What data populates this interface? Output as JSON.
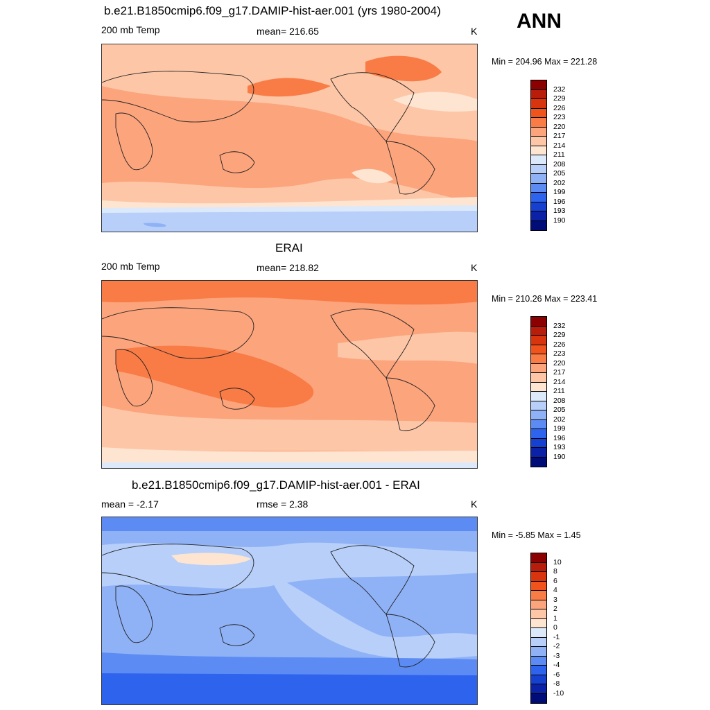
{
  "ann_label": "ANN",
  "panels": [
    {
      "title": "b.e21.B1850cmip6.f09_g17.DAMIP-hist-aer.001 (yrs 1980-2004)",
      "left_label": "200 mb Temp",
      "center_label": "mean= 216.65",
      "right_label": "K",
      "minmax": "Min = 204.96 Max = 221.28"
    },
    {
      "title": "ERAI",
      "left_label": "200 mb Temp",
      "center_label": "mean= 218.82",
      "right_label": "K",
      "minmax": "Min = 210.26 Max = 223.41"
    },
    {
      "title": "b.e21.B1850cmip6.f09_g17.DAMIP-hist-aer.001 - ERAI",
      "left_label": "mean =  -2.17",
      "center_label": "rmse =   2.38",
      "right_label": "K",
      "minmax": "Min =  -5.85 Max =   1.45"
    }
  ],
  "colorbars": {
    "temp_levels": [
      "232",
      "229",
      "226",
      "223",
      "220",
      "217",
      "214",
      "211",
      "208",
      "205",
      "202",
      "199",
      "196",
      "193",
      "190"
    ],
    "diff_levels": [
      "10",
      "8",
      "6",
      "4",
      "3",
      "2",
      "1",
      "0",
      "-1",
      "-2",
      "-3",
      "-4",
      "-6",
      "-8",
      "-10"
    ],
    "colors": [
      "#8b0000",
      "#b81d0c",
      "#d8350f",
      "#f0531b",
      "#f97b45",
      "#fca47c",
      "#fdc6a7",
      "#fee5d2",
      "#dce9fa",
      "#b7cff9",
      "#8fb1f6",
      "#5c8cf3",
      "#2e63ee",
      "#1540d0",
      "#0b22a6",
      "#000c78"
    ]
  },
  "chart_data": [
    {
      "type": "heatmap",
      "title": "b.e21.B1850cmip6.f09_g17.DAMIP-hist-aer.001 (yrs 1980-2004)",
      "variable": "200 mb Temp",
      "units": "K",
      "mean": 216.65,
      "min": 204.96,
      "max": 221.28,
      "contour_levels": [
        190,
        193,
        196,
        199,
        202,
        205,
        208,
        211,
        214,
        217,
        220,
        223,
        226,
        229,
        232
      ]
    },
    {
      "type": "heatmap",
      "title": "ERAI",
      "variable": "200 mb Temp",
      "units": "K",
      "mean": 218.82,
      "min": 210.26,
      "max": 223.41,
      "contour_levels": [
        190,
        193,
        196,
        199,
        202,
        205,
        208,
        211,
        214,
        217,
        220,
        223,
        226,
        229,
        232
      ]
    },
    {
      "type": "heatmap",
      "title": "b.e21.B1850cmip6.f09_g17.DAMIP-hist-aer.001 - ERAI",
      "units": "K",
      "mean": -2.17,
      "rmse": 2.38,
      "min": -5.85,
      "max": 1.45,
      "contour_levels": [
        -10,
        -8,
        -6,
        -4,
        -3,
        -2,
        -1,
        0,
        1,
        2,
        3,
        4,
        6,
        8,
        10
      ]
    }
  ]
}
